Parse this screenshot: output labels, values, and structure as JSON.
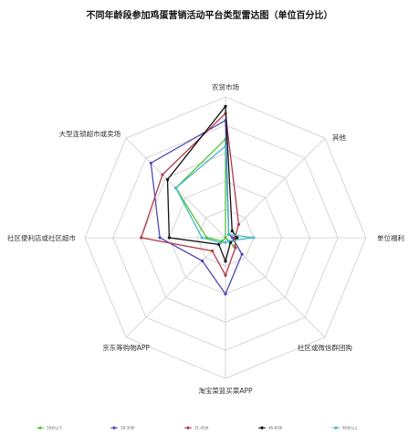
{
  "chart_data": {
    "type": "radar",
    "title": "不同年龄段参加鸡蛋营销活动平台类型雷达图（单位百分比）",
    "axes": [
      "农贸市场",
      "其他",
      "单位福利",
      "社区或微信群团购",
      "淘宝菜篮买菜APP",
      "京东等购物APP",
      "社区便利店或社区超市",
      "大型连锁超市或卖场"
    ],
    "rmax": 60,
    "grid_levels": 5,
    "grid": true,
    "legend_position": "bottom",
    "series": [
      {
        "name": "18岁以下",
        "color": "#55c232",
        "values": [
          42,
          0,
          0,
          5,
          0,
          2,
          8,
          30
        ]
      },
      {
        "name": "18-30岁",
        "color": "#4f49b6",
        "values": [
          50,
          2,
          3,
          10,
          24,
          14,
          28,
          45
        ]
      },
      {
        "name": "31-45岁",
        "color": "#b23a4a",
        "values": [
          53,
          8,
          4,
          6,
          16,
          8,
          36,
          38
        ]
      },
      {
        "name": "46-60岁",
        "color": "#111111",
        "values": [
          56,
          4,
          5,
          3,
          10,
          4,
          24,
          35
        ]
      },
      {
        "name": "60岁以上",
        "color": "#44b9c9",
        "values": [
          39,
          2,
          12,
          2,
          2,
          3,
          10,
          30
        ]
      }
    ]
  }
}
